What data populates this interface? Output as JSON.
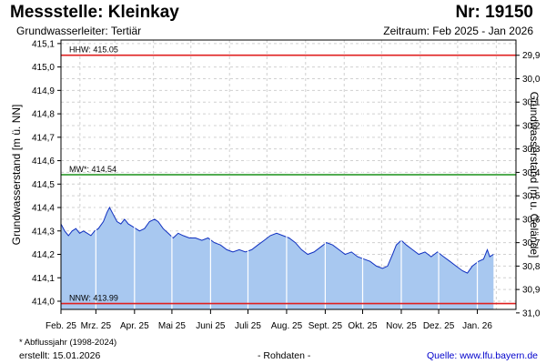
{
  "header": {
    "title": "Messstelle: Kleinkay",
    "station_number": "Nr: 19150",
    "subtitle": "Grundwasserleiter: Tertiär",
    "period": "Zeitraum: Feb 2025 - Jan 2026"
  },
  "footer": {
    "note": "* Abflussjahr (1998-2024)",
    "created": "erstellt:  15.01.2026",
    "raw_data": "- Rohdaten -",
    "source": "Quelle:  www.lfu.bayern.de"
  },
  "colors": {
    "fill": "#a8c8f0",
    "line": "#1030c0",
    "hhw": "#e02020",
    "mw": "#189018",
    "nnw": "#e02020",
    "grid": "#d0d0d0",
    "vgrid": "#ffffff"
  },
  "chart_data": {
    "type": "area",
    "ylabel": "Grundwasserstand [m ü. NN]",
    "y2label": "Grundwasserstand [m u. Gelände]",
    "ylim": [
      413.965,
      415.115
    ],
    "yticks": [
      "415,1",
      "415,0",
      "414,9",
      "414,8",
      "414,7",
      "414,6",
      "414,5",
      "414,4",
      "414,3",
      "414,2",
      "414,1",
      "414,0"
    ],
    "ytick_values": [
      415.1,
      415.0,
      414.9,
      414.8,
      414.7,
      414.6,
      414.5,
      414.4,
      414.3,
      414.2,
      414.1,
      414.0
    ],
    "y2ticks": [
      "29,9",
      "30,0",
      "30,1",
      "30,2",
      "30,3",
      "30,4",
      "30,5",
      "30,6",
      "30,7",
      "30,8",
      "30,9",
      "31,0"
    ],
    "y2tick_values_on_y": [
      415.05,
      414.95,
      414.85,
      414.75,
      414.65,
      414.55,
      414.45,
      414.35,
      414.25,
      414.15,
      414.05,
      413.95
    ],
    "xlim": [
      "2025-02-01",
      "2026-02-01"
    ],
    "xticks": [
      {
        "label": "Feb. 25",
        "date": "2025-02-01"
      },
      {
        "label": "Mrz. 25",
        "date": "2025-03-01"
      },
      {
        "label": "Apr. 25",
        "date": "2025-04-01"
      },
      {
        "label": "Mai 25",
        "date": "2025-05-01"
      },
      {
        "label": "Juni 25",
        "date": "2025-06-01"
      },
      {
        "label": "Juli 25",
        "date": "2025-07-01"
      },
      {
        "label": "Aug. 25",
        "date": "2025-08-01"
      },
      {
        "label": "Sept. 25",
        "date": "2025-09-01"
      },
      {
        "label": "Okt. 25",
        "date": "2025-10-01"
      },
      {
        "label": "Nov. 25",
        "date": "2025-11-01"
      },
      {
        "label": "Dez. 25",
        "date": "2025-12-01"
      },
      {
        "label": "Jan. 26",
        "date": "2026-01-01"
      }
    ],
    "reference_lines": [
      {
        "name": "HHW",
        "label": "HHW: 415.05",
        "value": 415.05
      },
      {
        "name": "MW",
        "label": "MW*: 414.54",
        "value": 414.54
      },
      {
        "name": "NNW",
        "label": "NNW: 413.99",
        "value": 413.99
      }
    ],
    "series": [
      {
        "values": [
          [
            "2025-02-01",
            414.33
          ],
          [
            "2025-02-04",
            414.3
          ],
          [
            "2025-02-07",
            414.28
          ],
          [
            "2025-02-10",
            414.3
          ],
          [
            "2025-02-13",
            414.31
          ],
          [
            "2025-02-16",
            414.29
          ],
          [
            "2025-02-19",
            414.3
          ],
          [
            "2025-02-22",
            414.29
          ],
          [
            "2025-02-25",
            414.28
          ],
          [
            "2025-02-28",
            414.3
          ],
          [
            "2025-03-03",
            414.31
          ],
          [
            "2025-03-07",
            414.34
          ],
          [
            "2025-03-10",
            414.38
          ],
          [
            "2025-03-12",
            414.4
          ],
          [
            "2025-03-15",
            414.37
          ],
          [
            "2025-03-18",
            414.34
          ],
          [
            "2025-03-21",
            414.33
          ],
          [
            "2025-03-24",
            414.35
          ],
          [
            "2025-03-27",
            414.33
          ],
          [
            "2025-03-30",
            414.32
          ],
          [
            "2025-04-02",
            414.31
          ],
          [
            "2025-04-05",
            414.3
          ],
          [
            "2025-04-09",
            414.31
          ],
          [
            "2025-04-13",
            414.34
          ],
          [
            "2025-04-17",
            414.35
          ],
          [
            "2025-04-20",
            414.34
          ],
          [
            "2025-04-24",
            414.31
          ],
          [
            "2025-04-28",
            414.29
          ],
          [
            "2025-05-02",
            414.27
          ],
          [
            "2025-05-06",
            414.29
          ],
          [
            "2025-05-10",
            414.28
          ],
          [
            "2025-05-15",
            414.27
          ],
          [
            "2025-05-20",
            414.27
          ],
          [
            "2025-05-25",
            414.26
          ],
          [
            "2025-05-30",
            414.27
          ],
          [
            "2025-06-04",
            414.25
          ],
          [
            "2025-06-09",
            414.24
          ],
          [
            "2025-06-14",
            414.22
          ],
          [
            "2025-06-19",
            414.21
          ],
          [
            "2025-06-24",
            414.22
          ],
          [
            "2025-06-29",
            414.21
          ],
          [
            "2025-07-04",
            414.22
          ],
          [
            "2025-07-09",
            414.24
          ],
          [
            "2025-07-14",
            414.26
          ],
          [
            "2025-07-19",
            414.28
          ],
          [
            "2025-07-24",
            414.29
          ],
          [
            "2025-07-29",
            414.28
          ],
          [
            "2025-08-03",
            414.27
          ],
          [
            "2025-08-08",
            414.25
          ],
          [
            "2025-08-13",
            414.22
          ],
          [
            "2025-08-18",
            414.2
          ],
          [
            "2025-08-23",
            414.21
          ],
          [
            "2025-08-28",
            414.23
          ],
          [
            "2025-09-02",
            414.25
          ],
          [
            "2025-09-07",
            414.24
          ],
          [
            "2025-09-12",
            414.22
          ],
          [
            "2025-09-17",
            414.2
          ],
          [
            "2025-09-22",
            414.21
          ],
          [
            "2025-09-27",
            414.19
          ],
          [
            "2025-10-02",
            414.18
          ],
          [
            "2025-10-07",
            414.17
          ],
          [
            "2025-10-12",
            414.15
          ],
          [
            "2025-10-17",
            414.14
          ],
          [
            "2025-10-21",
            414.15
          ],
          [
            "2025-10-25",
            414.2
          ],
          [
            "2025-10-28",
            414.24
          ],
          [
            "2025-11-01",
            414.26
          ],
          [
            "2025-11-05",
            414.24
          ],
          [
            "2025-11-10",
            414.22
          ],
          [
            "2025-11-15",
            414.2
          ],
          [
            "2025-11-20",
            414.21
          ],
          [
            "2025-11-25",
            414.19
          ],
          [
            "2025-11-30",
            414.21
          ],
          [
            "2025-12-05",
            414.19
          ],
          [
            "2025-12-10",
            414.17
          ],
          [
            "2025-12-15",
            414.15
          ],
          [
            "2025-12-20",
            414.13
          ],
          [
            "2025-12-24",
            414.12
          ],
          [
            "2025-12-28",
            414.15
          ],
          [
            "2026-01-02",
            414.17
          ],
          [
            "2026-01-06",
            414.18
          ],
          [
            "2026-01-09",
            414.22
          ],
          [
            "2026-01-11",
            414.19
          ],
          [
            "2026-01-14",
            414.2
          ]
        ]
      }
    ]
  }
}
